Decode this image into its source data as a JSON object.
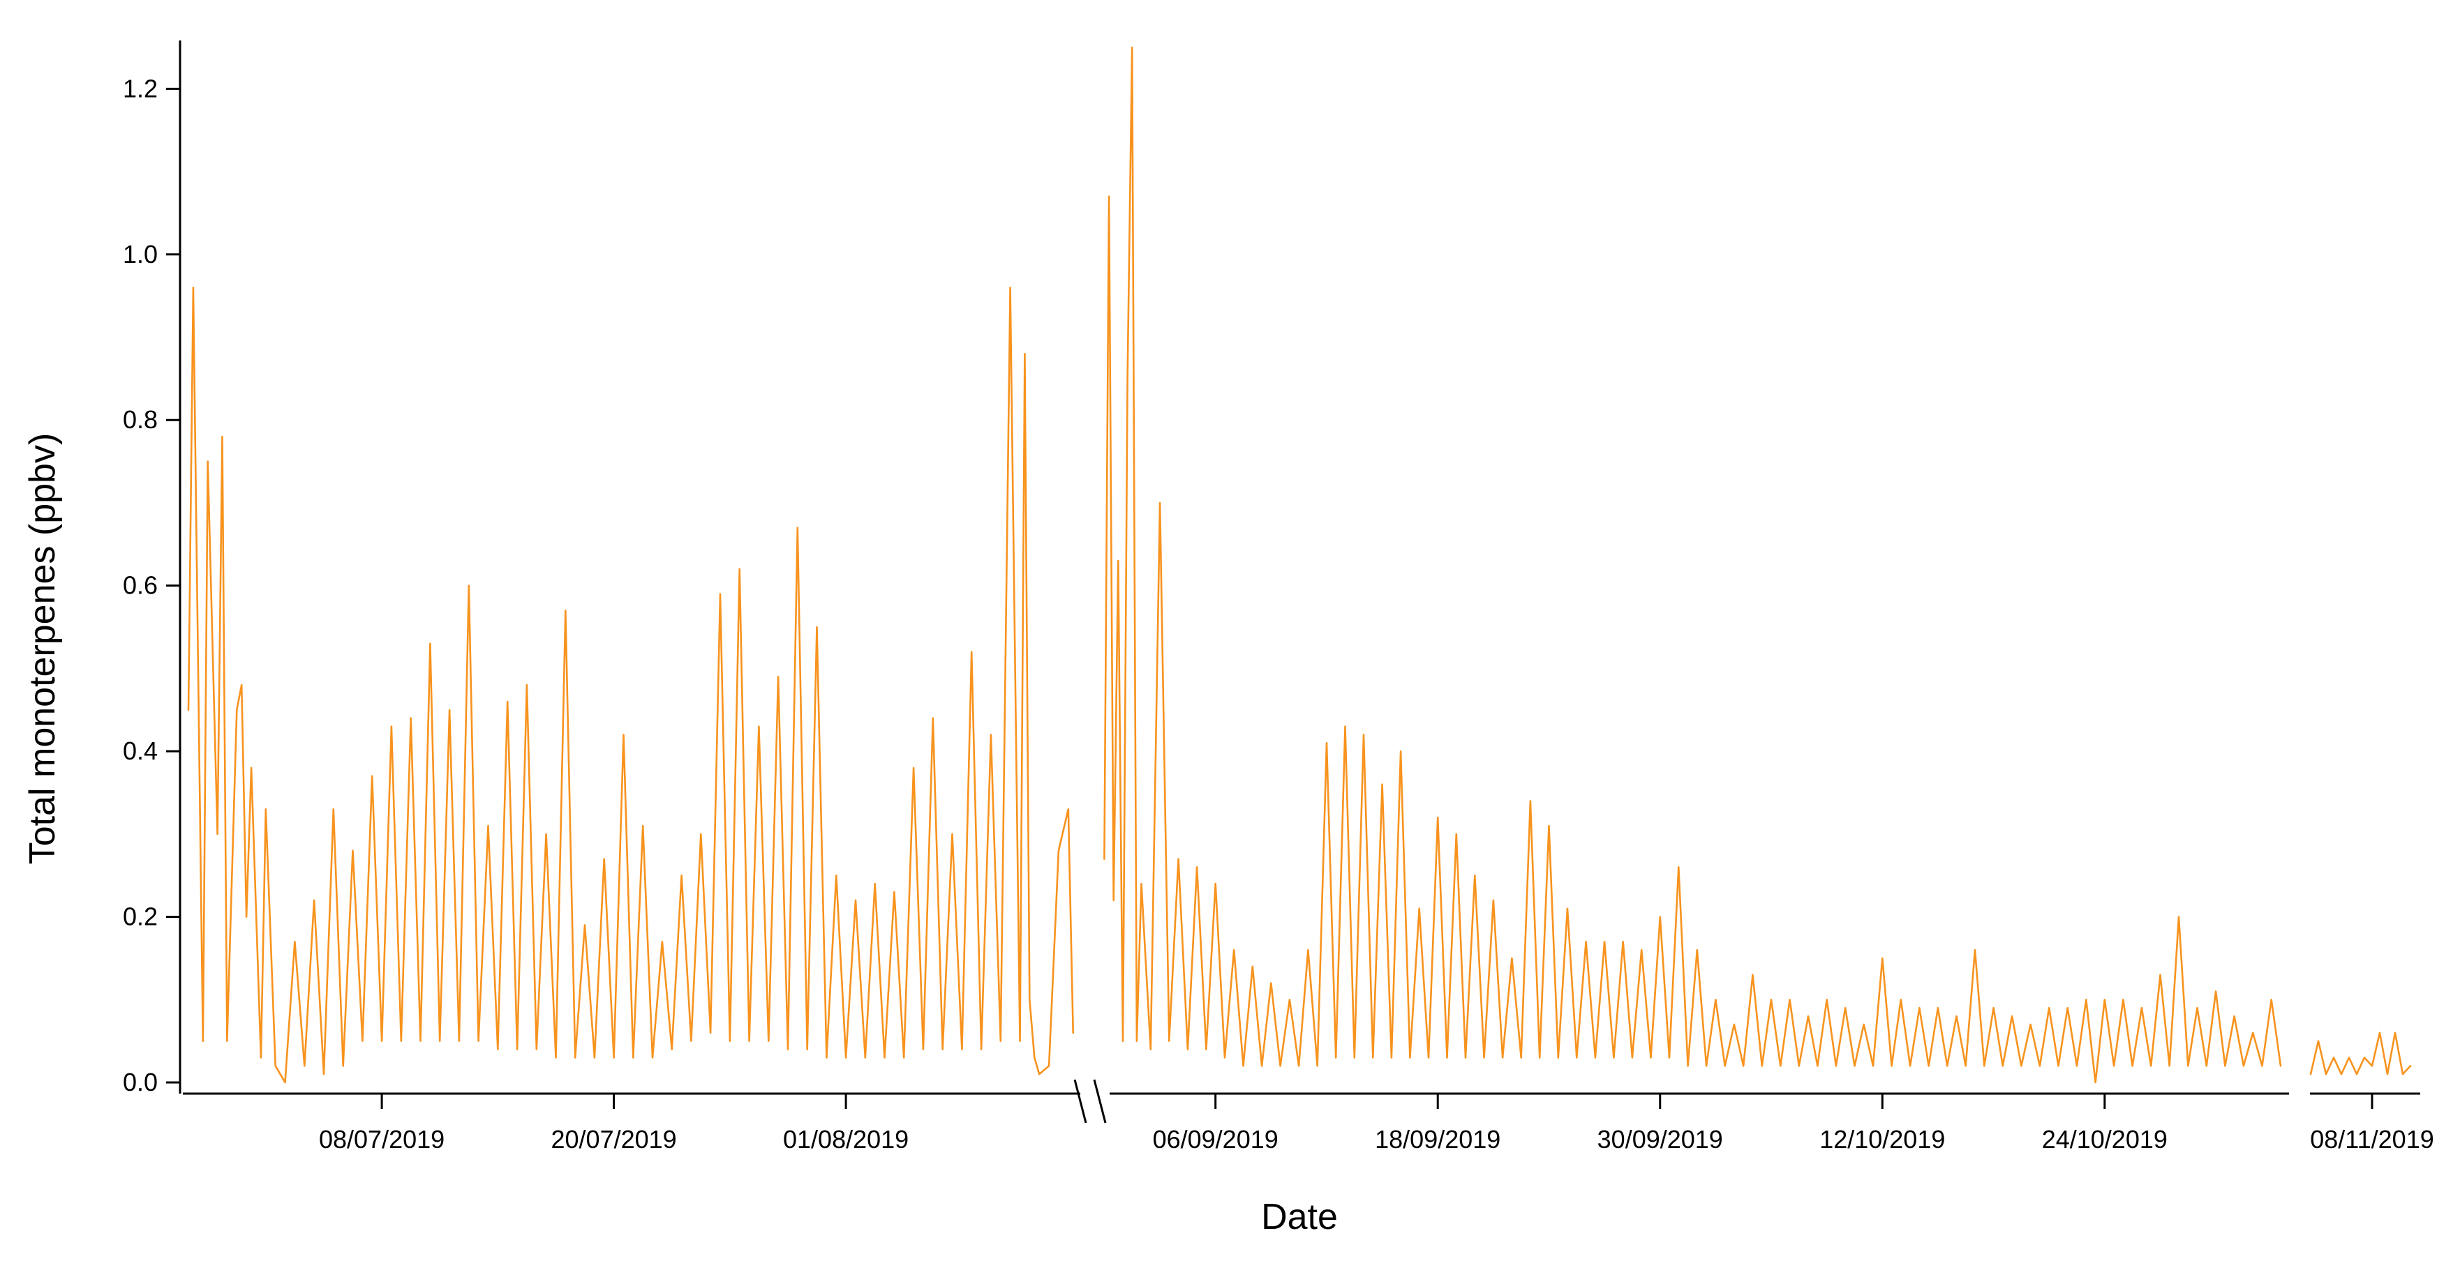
{
  "chart_data": {
    "type": "line",
    "title": "",
    "xlabel": "Date",
    "ylabel": "Total monoterpenes (ppbv)",
    "color": "#F7931E",
    "grid": false,
    "legend": "none",
    "ylim": [
      0,
      1.25
    ],
    "yticks": [
      0.0,
      0.2,
      0.4,
      0.6,
      0.8,
      1.0,
      1.2
    ],
    "ytick_labels": [
      "0.0",
      "0.2",
      "0.4",
      "0.6",
      "0.8",
      "1.0",
      "1.2"
    ],
    "xticks": [
      "08/07/2019",
      "20/07/2019",
      "01/08/2019",
      "06/09/2019",
      "18/09/2019",
      "30/09/2019",
      "12/10/2019",
      "24/10/2019",
      "08/11/2019"
    ],
    "axis_break_after": "2019-08-10",
    "segments": [
      {
        "x_range": [
          "2019-06-28",
          "2019-08-12"
        ],
        "points": [
          [
            "2019-06-28",
            0.45
          ],
          [
            "2019-06-28T06",
            0.96
          ],
          [
            "2019-06-28T18",
            0.05
          ],
          [
            "2019-06-29",
            0.75
          ],
          [
            "2019-06-29T12",
            0.3
          ],
          [
            "2019-06-29T18",
            0.78
          ],
          [
            "2019-06-30",
            0.05
          ],
          [
            "2019-06-30T12",
            0.45
          ],
          [
            "2019-06-30T18",
            0.48
          ],
          [
            "2019-07-01",
            0.2
          ],
          [
            "2019-07-01T06",
            0.38
          ],
          [
            "2019-07-01T18",
            0.03
          ],
          [
            "2019-07-02",
            0.33
          ],
          [
            "2019-07-02T12",
            0.02
          ],
          [
            "2019-07-03",
            0.0
          ],
          [
            "2019-07-03T12",
            0.17
          ],
          [
            "2019-07-04",
            0.02
          ],
          [
            "2019-07-04T12",
            0.22
          ],
          [
            "2019-07-05",
            0.01
          ],
          [
            "2019-07-05T12",
            0.33
          ],
          [
            "2019-07-06",
            0.02
          ],
          [
            "2019-07-06T12",
            0.28
          ],
          [
            "2019-07-07",
            0.05
          ],
          [
            "2019-07-07T12",
            0.37
          ],
          [
            "2019-07-08",
            0.05
          ],
          [
            "2019-07-08T12",
            0.43
          ],
          [
            "2019-07-09",
            0.05
          ],
          [
            "2019-07-09T12",
            0.44
          ],
          [
            "2019-07-10",
            0.05
          ],
          [
            "2019-07-10T12",
            0.53
          ],
          [
            "2019-07-11",
            0.05
          ],
          [
            "2019-07-11T12",
            0.45
          ],
          [
            "2019-07-12",
            0.05
          ],
          [
            "2019-07-12T12",
            0.6
          ],
          [
            "2019-07-13",
            0.05
          ],
          [
            "2019-07-13T12",
            0.31
          ],
          [
            "2019-07-14",
            0.04
          ],
          [
            "2019-07-14T12",
            0.46
          ],
          [
            "2019-07-15",
            0.04
          ],
          [
            "2019-07-15T12",
            0.48
          ],
          [
            "2019-07-16",
            0.04
          ],
          [
            "2019-07-16T12",
            0.3
          ],
          [
            "2019-07-17",
            0.03
          ],
          [
            "2019-07-17T12",
            0.57
          ],
          [
            "2019-07-18",
            0.03
          ],
          [
            "2019-07-18T12",
            0.19
          ],
          [
            "2019-07-19",
            0.03
          ],
          [
            "2019-07-19T12",
            0.27
          ],
          [
            "2019-07-20",
            0.03
          ],
          [
            "2019-07-20T12",
            0.42
          ],
          [
            "2019-07-21",
            0.03
          ],
          [
            "2019-07-21T12",
            0.31
          ],
          [
            "2019-07-22",
            0.03
          ],
          [
            "2019-07-22T12",
            0.17
          ],
          [
            "2019-07-23",
            0.04
          ],
          [
            "2019-07-23T12",
            0.25
          ],
          [
            "2019-07-24",
            0.05
          ],
          [
            "2019-07-24T12",
            0.3
          ],
          [
            "2019-07-25",
            0.06
          ],
          [
            "2019-07-25T12",
            0.59
          ],
          [
            "2019-07-26",
            0.05
          ],
          [
            "2019-07-26T12",
            0.62
          ],
          [
            "2019-07-27",
            0.05
          ],
          [
            "2019-07-27T12",
            0.43
          ],
          [
            "2019-07-28",
            0.05
          ],
          [
            "2019-07-28T12",
            0.49
          ],
          [
            "2019-07-29",
            0.04
          ],
          [
            "2019-07-29T12",
            0.67
          ],
          [
            "2019-07-30",
            0.04
          ],
          [
            "2019-07-30T12",
            0.55
          ],
          [
            "2019-07-31",
            0.03
          ],
          [
            "2019-07-31T12",
            0.25
          ],
          [
            "2019-08-01",
            0.03
          ],
          [
            "2019-08-01T12",
            0.22
          ],
          [
            "2019-08-02",
            0.03
          ],
          [
            "2019-08-02T12",
            0.24
          ],
          [
            "2019-08-03",
            0.03
          ],
          [
            "2019-08-03T12",
            0.23
          ],
          [
            "2019-08-04",
            0.03
          ],
          [
            "2019-08-04T12",
            0.38
          ],
          [
            "2019-08-05",
            0.04
          ],
          [
            "2019-08-05T12",
            0.44
          ],
          [
            "2019-08-06",
            0.04
          ],
          [
            "2019-08-06T12",
            0.3
          ],
          [
            "2019-08-07",
            0.04
          ],
          [
            "2019-08-07T12",
            0.52
          ],
          [
            "2019-08-08",
            0.04
          ],
          [
            "2019-08-08T12",
            0.42
          ],
          [
            "2019-08-09",
            0.05
          ],
          [
            "2019-08-09T12",
            0.96
          ],
          [
            "2019-08-10",
            0.05
          ],
          [
            "2019-08-10T06",
            0.88
          ],
          [
            "2019-08-10T12",
            0.1
          ],
          [
            "2019-08-10T18",
            0.03
          ],
          [
            "2019-08-11",
            0.01
          ],
          [
            "2019-08-11T12",
            0.02
          ],
          [
            "2019-08-12",
            0.28
          ],
          [
            "2019-08-12T12",
            0.33
          ],
          [
            "2019-08-12T18",
            0.06
          ]
        ]
      },
      {
        "x_range": [
          "2019-08-31",
          "2019-11-11"
        ],
        "points": [
          [
            "2019-08-31",
            0.27
          ],
          [
            "2019-08-31T06",
            1.07
          ],
          [
            "2019-08-31T12",
            0.22
          ],
          [
            "2019-08-31T18",
            0.63
          ],
          [
            "2019-09-01",
            0.05
          ],
          [
            "2019-09-01T06",
            0.85
          ],
          [
            "2019-09-01T12",
            1.25
          ],
          [
            "2019-09-01T18",
            0.05
          ],
          [
            "2019-09-02",
            0.24
          ],
          [
            "2019-09-02T12",
            0.04
          ],
          [
            "2019-09-03",
            0.7
          ],
          [
            "2019-09-03T12",
            0.05
          ],
          [
            "2019-09-04",
            0.27
          ],
          [
            "2019-09-04T12",
            0.04
          ],
          [
            "2019-09-05",
            0.26
          ],
          [
            "2019-09-05T12",
            0.04
          ],
          [
            "2019-09-06",
            0.24
          ],
          [
            "2019-09-06T12",
            0.03
          ],
          [
            "2019-09-07",
            0.16
          ],
          [
            "2019-09-07T12",
            0.02
          ],
          [
            "2019-09-08",
            0.14
          ],
          [
            "2019-09-08T12",
            0.02
          ],
          [
            "2019-09-09",
            0.12
          ],
          [
            "2019-09-09T12",
            0.02
          ],
          [
            "2019-09-10",
            0.1
          ],
          [
            "2019-09-10T12",
            0.02
          ],
          [
            "2019-09-11",
            0.16
          ],
          [
            "2019-09-11T12",
            0.02
          ],
          [
            "2019-09-12",
            0.41
          ],
          [
            "2019-09-12T12",
            0.03
          ],
          [
            "2019-09-13",
            0.43
          ],
          [
            "2019-09-13T12",
            0.03
          ],
          [
            "2019-09-14",
            0.42
          ],
          [
            "2019-09-14T12",
            0.03
          ],
          [
            "2019-09-15",
            0.36
          ],
          [
            "2019-09-15T12",
            0.03
          ],
          [
            "2019-09-16",
            0.4
          ],
          [
            "2019-09-16T12",
            0.03
          ],
          [
            "2019-09-17",
            0.21
          ],
          [
            "2019-09-17T12",
            0.03
          ],
          [
            "2019-09-18",
            0.32
          ],
          [
            "2019-09-18T12",
            0.03
          ],
          [
            "2019-09-19",
            0.3
          ],
          [
            "2019-09-19T12",
            0.03
          ],
          [
            "2019-09-20",
            0.25
          ],
          [
            "2019-09-20T12",
            0.03
          ],
          [
            "2019-09-21",
            0.22
          ],
          [
            "2019-09-21T12",
            0.03
          ],
          [
            "2019-09-22",
            0.15
          ],
          [
            "2019-09-22T12",
            0.03
          ],
          [
            "2019-09-23",
            0.34
          ],
          [
            "2019-09-23T12",
            0.03
          ],
          [
            "2019-09-24",
            0.31
          ],
          [
            "2019-09-24T12",
            0.03
          ],
          [
            "2019-09-25",
            0.21
          ],
          [
            "2019-09-25T12",
            0.03
          ],
          [
            "2019-09-26",
            0.17
          ],
          [
            "2019-09-26T12",
            0.03
          ],
          [
            "2019-09-27",
            0.17
          ],
          [
            "2019-09-27T12",
            0.03
          ],
          [
            "2019-09-28",
            0.17
          ],
          [
            "2019-09-28T12",
            0.03
          ],
          [
            "2019-09-29",
            0.16
          ],
          [
            "2019-09-29T12",
            0.03
          ],
          [
            "2019-09-30",
            0.2
          ],
          [
            "2019-09-30T12",
            0.03
          ],
          [
            "2019-10-01",
            0.26
          ],
          [
            "2019-10-01T12",
            0.02
          ],
          [
            "2019-10-02",
            0.16
          ],
          [
            "2019-10-02T12",
            0.02
          ],
          [
            "2019-10-03",
            0.1
          ],
          [
            "2019-10-03T12",
            0.02
          ],
          [
            "2019-10-04",
            0.07
          ],
          [
            "2019-10-04T12",
            0.02
          ],
          [
            "2019-10-05",
            0.13
          ],
          [
            "2019-10-05T12",
            0.02
          ],
          [
            "2019-10-06",
            0.1
          ],
          [
            "2019-10-06T12",
            0.02
          ],
          [
            "2019-10-07",
            0.1
          ],
          [
            "2019-10-07T12",
            0.02
          ],
          [
            "2019-10-08",
            0.08
          ],
          [
            "2019-10-08T12",
            0.02
          ],
          [
            "2019-10-09",
            0.1
          ],
          [
            "2019-10-09T12",
            0.02
          ],
          [
            "2019-10-10",
            0.09
          ],
          [
            "2019-10-10T12",
            0.02
          ],
          [
            "2019-10-11",
            0.07
          ],
          [
            "2019-10-11T12",
            0.02
          ],
          [
            "2019-10-12",
            0.15
          ],
          [
            "2019-10-12T12",
            0.02
          ],
          [
            "2019-10-13",
            0.1
          ],
          [
            "2019-10-13T12",
            0.02
          ],
          [
            "2019-10-14",
            0.09
          ],
          [
            "2019-10-14T12",
            0.02
          ],
          [
            "2019-10-15",
            0.09
          ],
          [
            "2019-10-15T12",
            0.02
          ],
          [
            "2019-10-16",
            0.08
          ],
          [
            "2019-10-16T12",
            0.02
          ],
          [
            "2019-10-17",
            0.16
          ],
          [
            "2019-10-17T12",
            0.02
          ],
          [
            "2019-10-18",
            0.09
          ],
          [
            "2019-10-18T12",
            0.02
          ],
          [
            "2019-10-19",
            0.08
          ],
          [
            "2019-10-19T12",
            0.02
          ],
          [
            "2019-10-20",
            0.07
          ],
          [
            "2019-10-20T12",
            0.02
          ],
          [
            "2019-10-21",
            0.09
          ],
          [
            "2019-10-21T12",
            0.02
          ],
          [
            "2019-10-22",
            0.09
          ],
          [
            "2019-10-22T12",
            0.02
          ],
          [
            "2019-10-23",
            0.1
          ],
          [
            "2019-10-23T12",
            0.0
          ],
          [
            "2019-10-24",
            0.1
          ],
          [
            "2019-10-24T12",
            0.02
          ],
          [
            "2019-10-25",
            0.1
          ],
          [
            "2019-10-25T12",
            0.02
          ],
          [
            "2019-10-26",
            0.09
          ],
          [
            "2019-10-26T12",
            0.02
          ],
          [
            "2019-10-27",
            0.13
          ],
          [
            "2019-10-27T12",
            0.02
          ],
          [
            "2019-10-28",
            0.2
          ],
          [
            "2019-10-28T12",
            0.02
          ],
          [
            "2019-10-29",
            0.09
          ],
          [
            "2019-10-29T12",
            0.02
          ],
          [
            "2019-10-30",
            0.11
          ],
          [
            "2019-10-30T12",
            0.02
          ],
          [
            "2019-10-31",
            0.08
          ],
          [
            "2019-10-31T12",
            0.02
          ],
          [
            "2019-11-01",
            0.06
          ],
          [
            "2019-11-01T12",
            0.02
          ],
          [
            "2019-11-02",
            0.1
          ],
          [
            "2019-11-02T12",
            0.02
          ]
        ]
      },
      {
        "x_range": [
          "2019-11-03",
          "2019-11-11"
        ],
        "points": [
          [
            "2019-11-04",
            0.01
          ],
          [
            "2019-11-04T12",
            0.05
          ],
          [
            "2019-11-05",
            0.01
          ],
          [
            "2019-11-05T12",
            0.03
          ],
          [
            "2019-11-06",
            0.01
          ],
          [
            "2019-11-06T12",
            0.03
          ],
          [
            "2019-11-07",
            0.01
          ],
          [
            "2019-11-07T12",
            0.03
          ],
          [
            "2019-11-08",
            0.02
          ],
          [
            "2019-11-08T12",
            0.06
          ],
          [
            "2019-11-09",
            0.01
          ],
          [
            "2019-11-09T12",
            0.06
          ],
          [
            "2019-11-10",
            0.01
          ],
          [
            "2019-11-10T12",
            0.02
          ]
        ]
      }
    ]
  }
}
